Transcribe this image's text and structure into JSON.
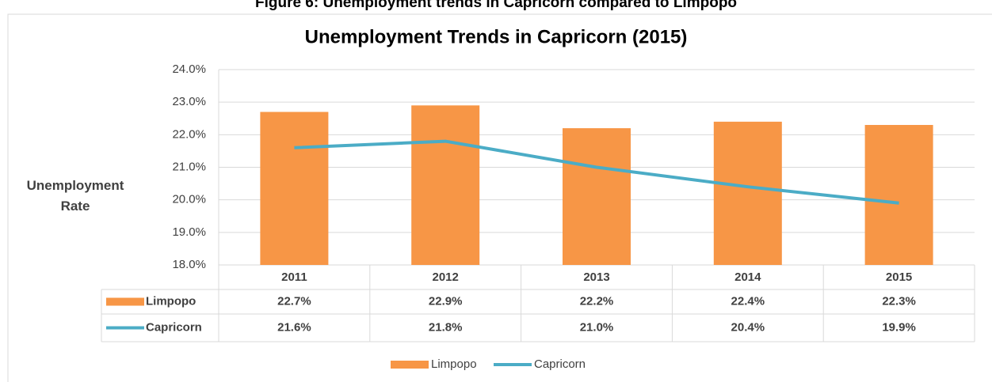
{
  "caption": "Figure 6: Unemployment trends in Capricorn compared to Limpopo",
  "chart_data": {
    "type": "bar",
    "title": "Unemployment Trends in Capricorn (2015)",
    "y_axis_label": "Unemployment Rate",
    "categories": [
      "2011",
      "2012",
      "2013",
      "2014",
      "2015"
    ],
    "series": [
      {
        "name": "Limpopo",
        "color": "#f79646",
        "values": [
          22.7,
          22.9,
          22.2,
          22.4,
          22.3
        ],
        "value_labels": [
          "22.7%",
          "22.9%",
          "22.2%",
          "22.4%",
          "22.3%"
        ]
      },
      {
        "name": "Capricorn",
        "type": "line",
        "color": "#4bacc6",
        "values": [
          21.6,
          21.8,
          21.0,
          20.4,
          19.9
        ],
        "value_labels": [
          "21.6%",
          "21.8%",
          "21.0%",
          "20.4%",
          "19.9%"
        ]
      }
    ],
    "ylim": [
      18,
      24
    ],
    "yticks": [
      {
        "value": 18,
        "label": "18.0%"
      },
      {
        "value": 19,
        "label": "19.0%"
      },
      {
        "value": 20,
        "label": "20.0%"
      },
      {
        "value": 21,
        "label": "21.0%"
      },
      {
        "value": 22,
        "label": "22.0%"
      },
      {
        "value": 23,
        "label": "23.0%"
      },
      {
        "value": 24,
        "label": "24.0%"
      }
    ],
    "grid": true,
    "legend": "bottom"
  }
}
